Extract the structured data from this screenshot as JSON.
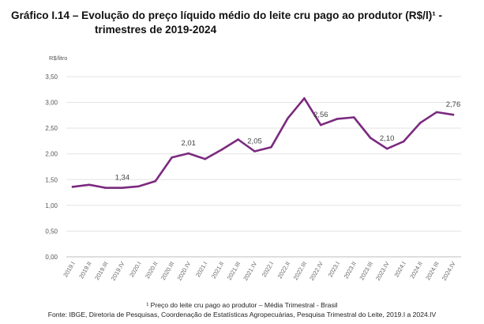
{
  "header": {
    "title_line1": "Gráfico I.14 – Evolução do preço líquido médio do leite cru pago ao produtor (R$/l)¹ -",
    "title_line2": "trimestres de 2019-2024"
  },
  "footnotes": {
    "note": "¹ Preço do leite cru pago ao produtor – Média Trimestral - Brasil",
    "source": "Fonte: IBGE, Diretoria de Pesquisas, Coordenação de Estatísticas Agropecuárias, Pesquisa Trimestral do Leite, 2019.I a 2024.IV"
  },
  "chart_data": {
    "type": "line",
    "title": "Gráfico I.14 – Evolução do preço líquido médio do leite cru pago ao produtor (R$/l)¹ - trimestres de 2019-2024",
    "ylabel": "R$/litro",
    "xlabel": "",
    "ylim": [
      0,
      3.5
    ],
    "yticks": [
      "0,00",
      "0,50",
      "1,00",
      "1,50",
      "2,00",
      "2,50",
      "3,00",
      "3,50"
    ],
    "grid": "horizontal",
    "line_color": "#7b2a7f",
    "categories": [
      "2019.I",
      "2019.II",
      "2019.III",
      "2019.IV",
      "2020.I",
      "2020.II",
      "2020.III",
      "2020.IV",
      "2021.I",
      "2021.II",
      "2021.III",
      "2021.IV",
      "2022.I",
      "2022.II",
      "2022.III",
      "2022.IV",
      "2023.I",
      "2023.II",
      "2023.III",
      "2023.IV",
      "2024.I",
      "2024.II",
      "2024.III",
      "2024.IV"
    ],
    "values": [
      1.36,
      1.4,
      1.34,
      1.34,
      1.37,
      1.47,
      1.93,
      2.01,
      1.9,
      2.08,
      2.28,
      2.05,
      2.13,
      2.69,
      3.08,
      2.56,
      2.68,
      2.71,
      2.31,
      2.1,
      2.24,
      2.6,
      2.81,
      2.76
    ],
    "data_labels": [
      {
        "index": 3,
        "text": "1,34"
      },
      {
        "index": 7,
        "text": "2,01"
      },
      {
        "index": 11,
        "text": "2,05"
      },
      {
        "index": 15,
        "text": "2,56"
      },
      {
        "index": 19,
        "text": "2,10"
      },
      {
        "index": 23,
        "text": "2,76"
      }
    ]
  }
}
